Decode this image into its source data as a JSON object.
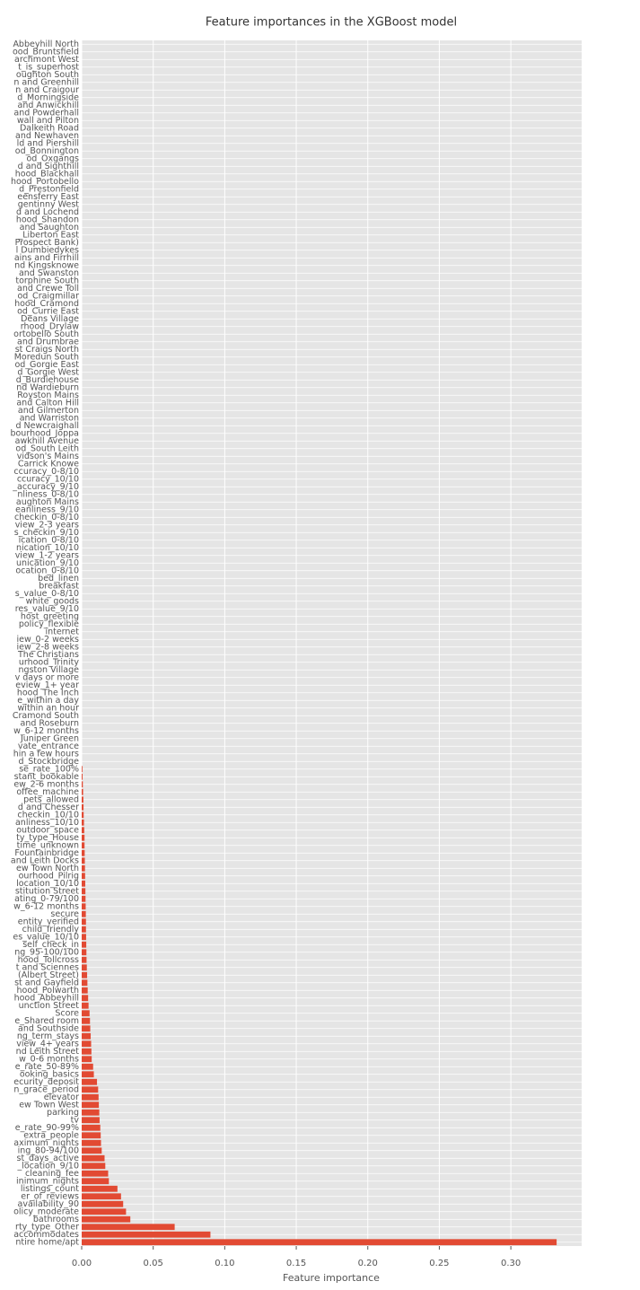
{
  "chart_data": {
    "type": "barh",
    "title": "Feature importances in the XGBoost model",
    "xlabel": "Feature importance",
    "color": "#e24a33",
    "grid": true,
    "xlim": [
      0,
      0.3495
    ],
    "xticks": [
      {
        "value": 0,
        "label": "0.00"
      },
      0.05,
      {
        "value": 0.1,
        "label": "0.10"
      },
      0.15,
      {
        "value": 0.2,
        "label": "0.20"
      },
      0.25,
      {
        "value": 0.3,
        "label": "0.30"
      }
    ],
    "categories": [
      "Abbeyhill North",
      "ood_Bruntsfield",
      "archmont West",
      "t_is_superhost",
      "oughton South",
      "n and Greenhill",
      "n and Craigour",
      "d_Morningside",
      "and Anwickhill",
      "and Powderhall",
      "wall and Pilton",
      "Dalkeith Road",
      "and Newhaven",
      "ld and Piershill",
      "od_Bonnington",
      "od_Oxgangs",
      "d and Sighthill",
      "hood_Blackhall",
      "hood_Portobello",
      "d_Prestonfield",
      "eensferry East",
      "gentinny West",
      "d and Lochend",
      "hood_Shandon",
      "and Saughton",
      "_Liberton East",
      "Prospect Bank)",
      "l Dumbiedykes",
      "ains and Firrhill",
      "nd Kingsknowe",
      "and Swanston",
      "torphine South",
      "and Crewe Toll",
      "od_Craigmillar",
      "hood_Cramond",
      "od_Currie East",
      "Deans Village",
      "rhood_Drylaw",
      "ortobello South",
      "and Drumbrae",
      "st Craigs North",
      "Moredun South",
      "od_Gorgie East",
      "d_Gorgie West",
      "d_Burdiehouse",
      "nd Wardieburn",
      "Royston Mains",
      "and Calton Hill",
      "and Gilmerton",
      "and Warriston",
      "d Newcraighall",
      "bourhood_Joppa",
      "awkhill Avenue",
      "od_South Leith",
      "vidson's Mains",
      "Carrick Knowe",
      "ccuracy_0-8/10",
      "ccuracy_10/10",
      "_accuracy_9/10",
      "nliness_0-8/10",
      "aughton Mains",
      "eanliness_9/10",
      "checkin_0-8/10",
      "view_2-3 years",
      "s_checkin_9/10",
      "ication_0-8/10",
      "nication_10/10",
      "view_1-2 years",
      "unication_9/10",
      "ocation_0-8/10",
      "bed_linen",
      "breakfast",
      "s_value_0-8/10",
      "white_goods",
      "res_value_9/10",
      "host_greeting",
      "policy_flexible",
      "internet",
      "iew_0-2 weeks",
      "iew_2-8 weeks",
      "The Christians",
      "urhood_Trinity",
      "ngston Village",
      "v days or more",
      "eview_1+ year",
      "hood_The Inch",
      "e_within a day",
      "within an hour",
      "Cramond South",
      "and Roseburn",
      "w_6-12 months",
      "Juniper Green",
      "vate_entrance",
      "hin a few hours",
      "d_Stockbridge",
      "se_rate_100%",
      "stant_bookable",
      "ew_2-6 months",
      "offee_machine",
      "pets_allowed",
      "d and Chesser",
      "checkin_10/10",
      "anliness_10/10",
      "outdoor_space",
      "ty_type_House",
      "time_unknown",
      "Fountainbridge",
      "and Leith Docks",
      "ew Town North",
      "ourhood_Pilrig",
      "location_10/10",
      "stitution Street",
      "ating_0-79/100",
      "w_6-12 months",
      "secure",
      "entity_verified",
      "child_friendly",
      "es_value_10/10",
      "self_check_in",
      "ng_95-100/100",
      "hood_Tollcross",
      "t and Sciennes",
      "(Albert Street)",
      "st and Gayfield",
      "hood_Polwarth",
      "hood_Abbeyhill",
      "unction Street",
      "Score",
      "e_Shared room",
      "and Southside",
      "ng_term_stays",
      "view_4+ years",
      "nd Leith Street",
      "w_0-6 months",
      "e_rate_50-89%",
      "ooking_basics",
      "ecurity_deposit",
      "n_grace_period",
      "elevator",
      "ew Town West",
      "parking",
      "tv",
      "e_rate_90-99%",
      "extra_people",
      "aximum_nights",
      "ing_80-94/100",
      "st_days_active",
      "_location_9/10",
      "cleaning_fee",
      "inimum_nights",
      "listings_count",
      "er_of_reviews",
      "availability_90",
      "olicy_moderate",
      "bathrooms",
      "rty_type_Other",
      "accommodates",
      "ntire home/apt"
    ],
    "values": [
      0,
      0,
      0,
      0,
      0,
      0,
      0,
      0,
      0,
      0,
      0,
      0,
      0,
      0,
      0,
      0,
      0,
      0,
      0,
      0,
      0,
      0,
      0,
      0,
      0,
      0,
      0,
      0,
      0,
      0,
      0,
      0,
      0,
      0,
      0,
      0,
      0,
      0,
      0,
      0,
      0,
      0,
      0,
      0,
      0,
      0,
      0,
      0,
      0,
      0,
      0,
      0,
      0,
      0,
      0,
      0,
      0,
      0,
      0,
      0,
      0,
      0,
      0,
      0,
      0,
      0,
      0,
      0,
      0,
      0,
      0,
      0,
      0,
      0,
      0,
      0,
      0,
      0,
      0,
      0,
      0,
      0,
      0,
      0,
      0,
      0,
      0,
      0,
      0,
      0,
      0,
      0,
      0,
      0,
      0,
      0.0005,
      0.0006,
      0.0008,
      0.001,
      0.0012,
      0.0013,
      0.0014,
      0.0016,
      0.0018,
      0.002,
      0.002,
      0.0021,
      0.0022,
      0.0023,
      0.0024,
      0.0025,
      0.0026,
      0.0027,
      0.0028,
      0.0029,
      0.003,
      0.003,
      0.0031,
      0.0032,
      0.0033,
      0.0034,
      0.0036,
      0.0038,
      0.004,
      0.0042,
      0.0045,
      0.0048,
      0.0055,
      0.0058,
      0.006,
      0.0063,
      0.0066,
      0.0068,
      0.007,
      0.008,
      0.0085,
      0.0107,
      0.0115,
      0.0118,
      0.012,
      0.0123,
      0.0125,
      0.013,
      0.0133,
      0.0135,
      0.014,
      0.016,
      0.0165,
      0.0185,
      0.019,
      0.025,
      0.0275,
      0.029,
      0.031,
      0.034,
      0.065,
      0.09,
      0.332
    ]
  }
}
